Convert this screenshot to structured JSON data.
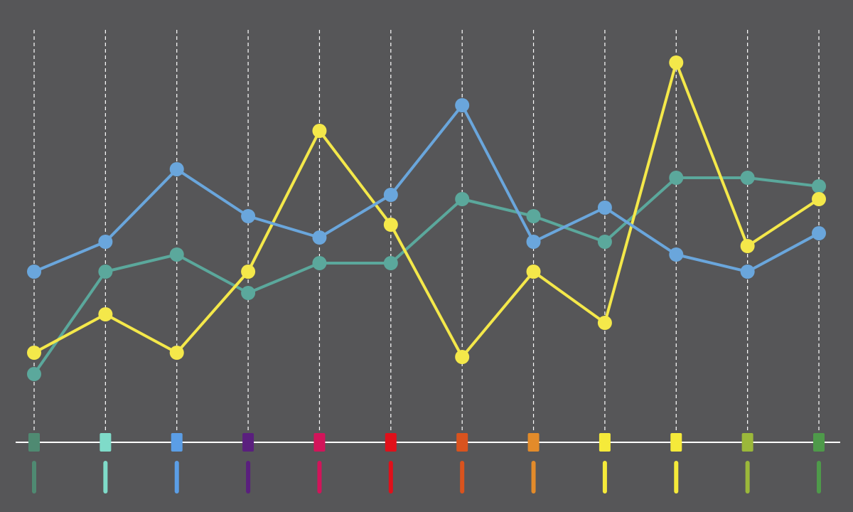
{
  "chart_data": {
    "type": "line",
    "categories": [
      null,
      null,
      null,
      null,
      null,
      null,
      null,
      null,
      null,
      null,
      null,
      null
    ],
    "category_colors": [
      "#4f8a72",
      "#7fdbc9",
      "#5b9ee6",
      "#5a1f7e",
      "#d2145a",
      "#e0101a",
      "#d9531e",
      "#e38b2a",
      "#f5ea3a",
      "#f5ea3a",
      "#9bb83a",
      "#4e9a4a"
    ],
    "series": [
      {
        "color": "#5ba89c",
        "values": [
          16,
          40,
          44,
          35,
          42,
          42,
          57,
          53,
          47,
          62,
          62,
          60
        ]
      },
      {
        "color": "#f4e84a",
        "values": [
          21,
          30,
          21,
          40,
          73,
          51,
          20,
          40,
          28,
          89,
          46,
          57
        ]
      },
      {
        "color": "#6aa6dc",
        "values": [
          40,
          47,
          64,
          53,
          48,
          58,
          79,
          47,
          55,
          44,
          40,
          49
        ]
      }
    ],
    "ylim": [
      0,
      100
    ],
    "grid": true
  }
}
